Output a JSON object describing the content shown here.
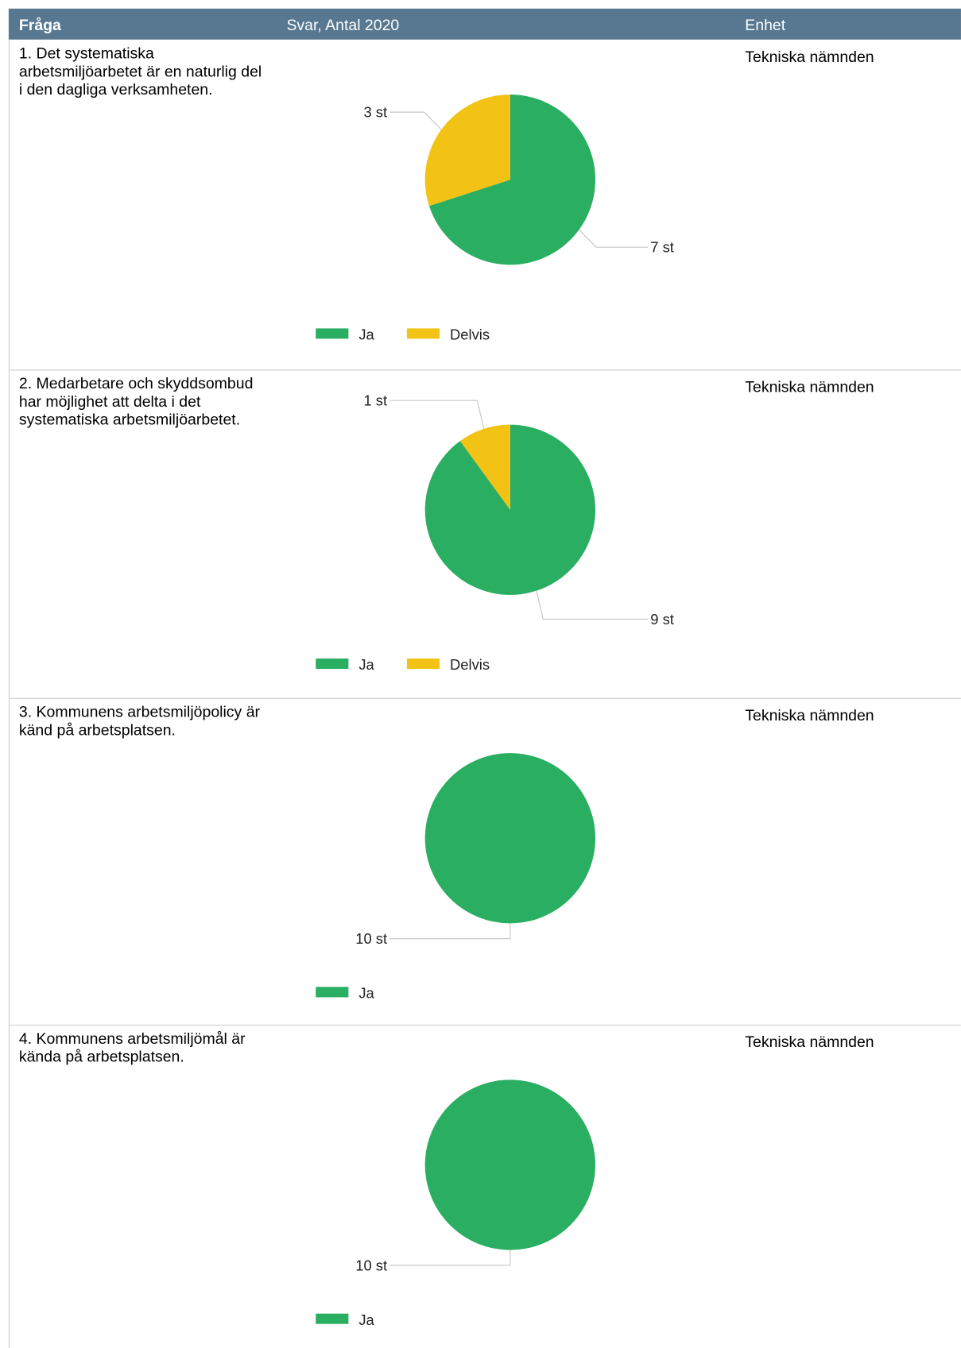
{
  "table": {
    "header": [
      "Fråga",
      "Svar, Antal 2020",
      "Enhet"
    ],
    "rows": [
      {
        "question": "1. Det systematiska arbetsmiljöarbetet är en naturlig del i den dagliga verksamheten.",
        "unit": "Tekniska nämnden",
        "chart": {
          "type": "pie",
          "categories": [
            "Ja",
            "Delvis"
          ],
          "values": [
            7,
            3
          ],
          "value_labels": [
            "7 st",
            "3 st"
          ],
          "colors": [
            "#2aae61",
            "#f2c314"
          ]
        }
      },
      {
        "question": "2. Medarbetare och skyddsombud har möjlighet att delta i det systematiska arbetsmiljöarbetet.",
        "unit": "Tekniska nämnden",
        "chart": {
          "type": "pie",
          "categories": [
            "Ja",
            "Delvis"
          ],
          "values": [
            9,
            1
          ],
          "value_labels": [
            "9 st",
            "1 st"
          ],
          "colors": [
            "#2aae61",
            "#f2c314"
          ]
        }
      },
      {
        "question": "3. Kommunens arbetsmiljöpolicy är känd på arbetsplatsen.",
        "unit": "Tekniska nämnden",
        "chart": {
          "type": "pie",
          "categories": [
            "Ja"
          ],
          "values": [
            10
          ],
          "value_labels": [
            "10 st"
          ],
          "colors": [
            "#2aae61"
          ]
        }
      },
      {
        "question": "4. Kommunens arbetsmiljömål är kända på arbetsplatsen.",
        "unit": "Tekniska nämnden",
        "chart": {
          "type": "pie",
          "categories": [
            "Ja"
          ],
          "values": [
            10
          ],
          "value_labels": [
            "10 st"
          ],
          "colors": [
            "#2aae61"
          ]
        }
      }
    ]
  }
}
